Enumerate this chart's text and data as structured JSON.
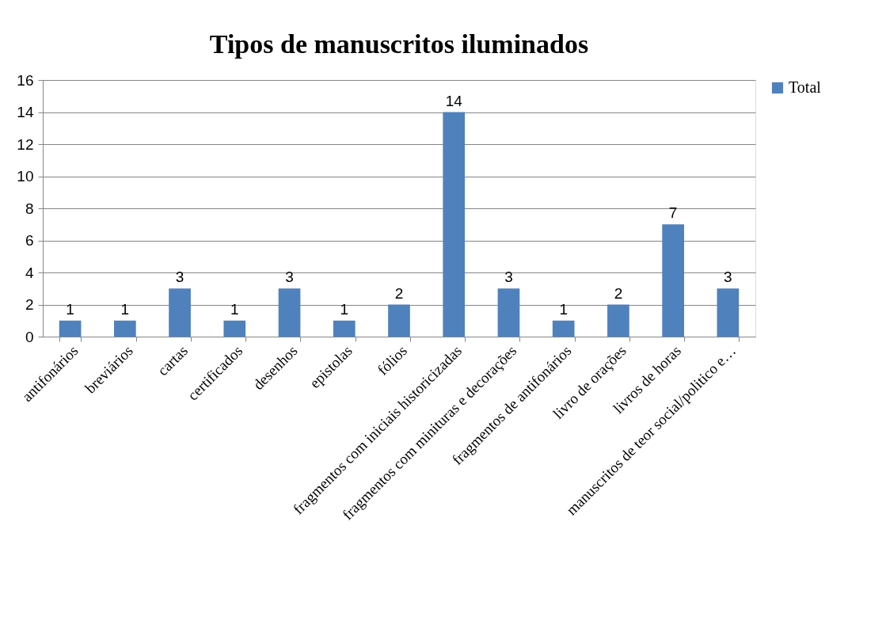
{
  "chart_data": {
    "type": "bar",
    "title": "Tipos de manuscritos iluminados",
    "categories": [
      "antifonários",
      "breviários",
      "cartas",
      "certificados",
      "desenhos",
      "epistolas",
      "fólios",
      "fragmentos com iniciais historicizadas",
      "fragmentos com minituras e decorações",
      "fragmentos de antifonários",
      "livro de orações",
      "livros de horas",
      "manuscritos de teor social/politico e…"
    ],
    "series": [
      {
        "name": "Total",
        "color": "#4f81bd",
        "values": [
          1,
          1,
          3,
          1,
          3,
          1,
          2,
          14,
          3,
          1,
          2,
          7,
          3
        ]
      }
    ],
    "ylim": [
      0,
      16
    ],
    "yticks": [
      0,
      2,
      4,
      6,
      8,
      10,
      12,
      14,
      16
    ],
    "grid": "y",
    "legend": "right",
    "data_labels": true
  }
}
